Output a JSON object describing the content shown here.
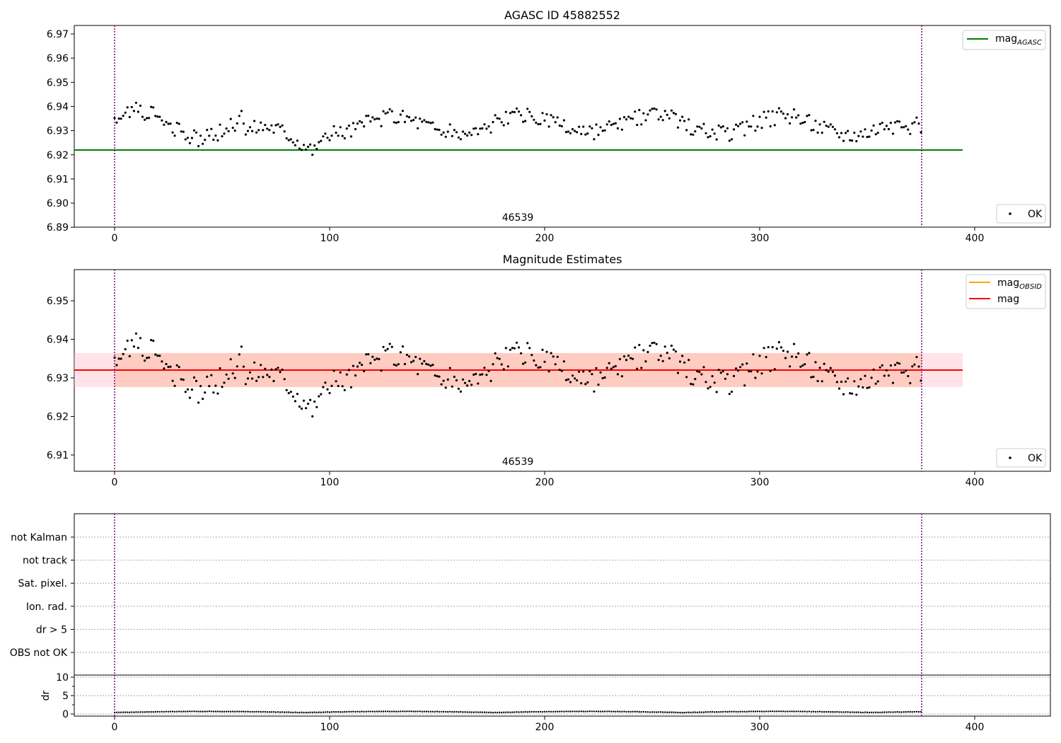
{
  "figure": {
    "panel1": {
      "title": "AGASC ID 45882552",
      "obsid_label": "46539",
      "legend_line": "mag",
      "legend_line_sub": "AGASC",
      "legend_points": "OK"
    },
    "panel2": {
      "title": "Magnitude Estimates",
      "obsid_label": "46539",
      "legend_line1": "mag",
      "legend_line1_sub": "OBSID",
      "legend_line2": "mag",
      "legend_points": "OK"
    },
    "panel3": {
      "flag_labels": [
        "not Kalman",
        "not track",
        "Sat. pixel.",
        "Ion. rad.",
        "dr > 5",
        "OBS not OK"
      ]
    },
    "panel4": {
      "ylabel": "dr"
    }
  },
  "colors": {
    "points": "#000000",
    "agasc_line": "#008000",
    "obsid_line": "#ffa500",
    "mean_line": "#ff0000",
    "obs_window": "#800080",
    "band_orange": "#ffa07a",
    "band_pink": "#ffc0cb"
  },
  "chart_data": [
    {
      "type": "scatter",
      "title": "AGASC ID 45882552",
      "x": "sample index 0–375",
      "series": [
        {
          "name": "OK",
          "values_desc": "magnitude per sample",
          "y_range": [
            6.919,
            6.944
          ]
        },
        {
          "name": "mag_AGASC",
          "type": "line",
          "x": [
            -20,
            395
          ],
          "y": [
            6.922,
            6.922
          ]
        }
      ],
      "xlim": [
        -19,
        436
      ],
      "ylim": [
        6.889,
        6.973
      ],
      "xticks": [
        0,
        100,
        200,
        300,
        400
      ],
      "yticks": [
        6.89,
        6.9,
        6.91,
        6.92,
        6.93,
        6.94,
        6.95,
        6.96,
        6.97
      ],
      "vlines": [
        0,
        375
      ],
      "annotation": "46539"
    },
    {
      "type": "scatter",
      "title": "Magnitude Estimates",
      "series": [
        {
          "name": "OK",
          "values_desc": "magnitude per sample"
        },
        {
          "name": "mag_OBSID",
          "type": "line",
          "y": 6.932
        },
        {
          "name": "mag",
          "type": "line",
          "y": 6.932
        }
      ],
      "band": [
        6.9275,
        6.9365
      ],
      "xlim": [
        -19,
        436
      ],
      "ylim": [
        6.9055,
        6.9585
      ],
      "xticks": [
        0,
        100,
        200,
        300,
        400
      ],
      "yticks": [
        6.91,
        6.92,
        6.93,
        6.94,
        6.95
      ],
      "vlines": [
        0,
        375
      ],
      "annotation": "46539"
    },
    {
      "type": "scatter",
      "categories": [
        "not Kalman",
        "not track",
        "Sat. pixel.",
        "Ion. rad.",
        "dr > 5",
        "OBS not OK"
      ],
      "values": [],
      "xlim": [
        -19,
        436
      ]
    },
    {
      "type": "scatter",
      "ylabel": "dr",
      "xlim": [
        -19,
        436
      ],
      "ylim": [
        -0.6,
        11
      ],
      "xticks": [
        0,
        100,
        200,
        300,
        400
      ],
      "yticks": [
        0,
        5,
        10
      ],
      "y_range": [
        0.1,
        0.9
      ],
      "vlines": [
        0,
        375
      ]
    }
  ]
}
